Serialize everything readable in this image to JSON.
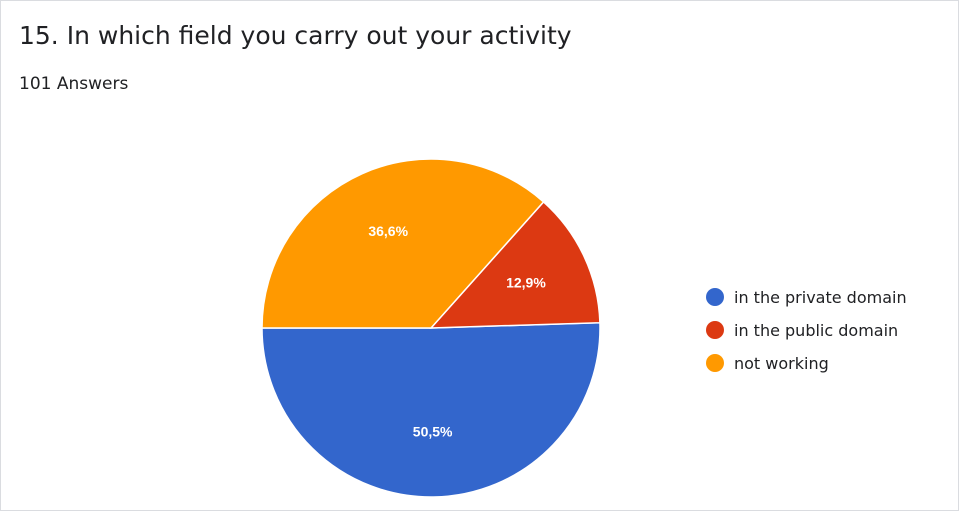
{
  "chart_data": {
    "type": "pie",
    "title": "15. In which field you carry out your activity",
    "subtitle": "101 Answers",
    "slices": [
      {
        "label": "in the private domain",
        "value": 50.5,
        "value_label": "50,5%",
        "color": "#3366cc"
      },
      {
        "label": "in the public domain",
        "value": 12.9,
        "value_label": "12,9%",
        "color": "#dc3912"
      },
      {
        "label": "not working",
        "value": 36.6,
        "value_label": "36,6%",
        "color": "#ff9900"
      }
    ],
    "legend_position": "right"
  }
}
